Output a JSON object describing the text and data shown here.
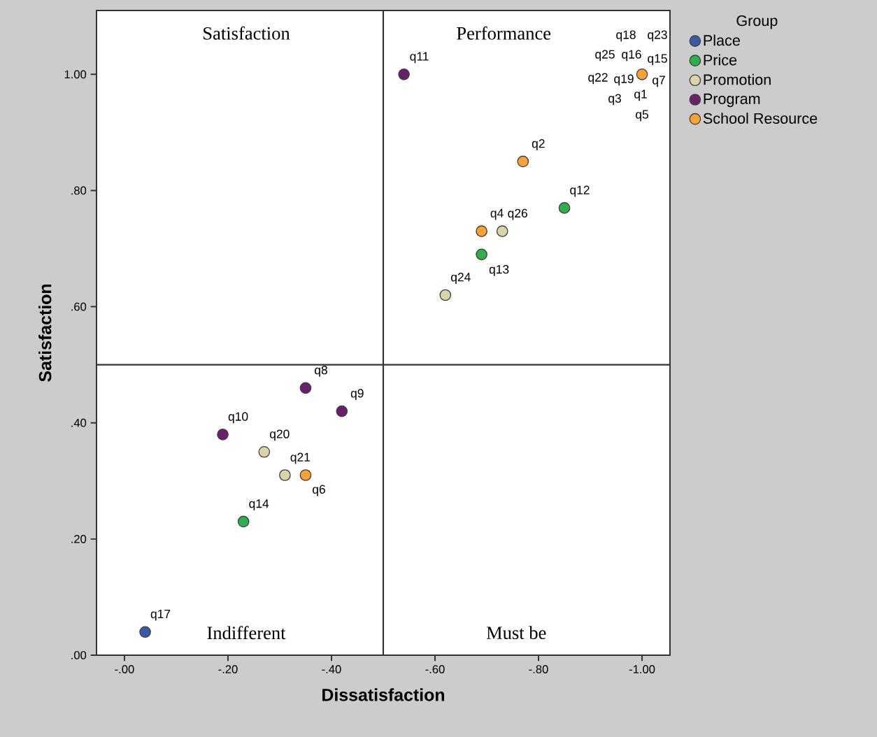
{
  "chart_data": {
    "type": "scatter",
    "xlabel": "Dissatisfaction",
    "ylabel": "Satisfaction",
    "legend_title": "Group",
    "annotations": [
      "Satisfaction",
      "Performance",
      "Indifferent",
      "Must be",
      {
        "text": "q11",
        "x": -0.54,
        "y": 1.0
      },
      {
        "text": "q2",
        "x": -0.77,
        "y": 0.85
      },
      {
        "text": "q12",
        "x": -0.85,
        "y": 0.77
      },
      {
        "text": "q4",
        "x": -0.69,
        "y": 0.73
      },
      {
        "text": "q26",
        "x": -0.73,
        "y": 0.73
      },
      {
        "text": "q13",
        "x": -0.69,
        "y": 0.69
      },
      {
        "text": "q24",
        "x": -0.62,
        "y": 0.62
      },
      {
        "text": "q8",
        "x": -0.35,
        "y": 0.46
      },
      {
        "text": "q9",
        "x": -0.42,
        "y": 0.42
      },
      {
        "text": "q10",
        "x": -0.19,
        "y": 0.38
      },
      {
        "text": "q20",
        "x": -0.27,
        "y": 0.35
      },
      {
        "text": "q21",
        "x": -0.31,
        "y": 0.31
      },
      {
        "text": "q6",
        "x": -0.35,
        "y": 0.31
      },
      {
        "text": "q14",
        "x": -0.23,
        "y": 0.23
      },
      {
        "text": "q17",
        "x": -0.04,
        "y": 0.04
      },
      {
        "text": "q18",
        "x": -1.0,
        "y": 1.0
      },
      {
        "text": "q23",
        "x": -1.0,
        "y": 1.0
      },
      {
        "text": "q25",
        "x": -1.0,
        "y": 1.0
      },
      {
        "text": "q16",
        "x": -1.0,
        "y": 1.0
      },
      {
        "text": "q15",
        "x": -1.0,
        "y": 1.0
      },
      {
        "text": "q22",
        "x": -1.0,
        "y": 1.0
      },
      {
        "text": "q19",
        "x": -1.0,
        "y": 1.0
      },
      {
        "text": "q7",
        "x": -1.0,
        "y": 1.0
      },
      {
        "text": "q3",
        "x": -1.0,
        "y": 1.0
      },
      {
        "text": "q1",
        "x": -1.0,
        "y": 1.0
      },
      {
        "text": "q5",
        "x": -1.0,
        "y": 1.0
      }
    ],
    "series": [
      {
        "name": "Place",
        "color": "#3a5aa8",
        "x": [
          -0.04
        ],
        "values": [
          0.04
        ]
      },
      {
        "name": "Price",
        "color": "#2fb04c",
        "x": [
          -0.85,
          -0.69,
          -0.23
        ],
        "values": [
          0.77,
          0.69,
          0.23
        ]
      },
      {
        "name": "Promotion",
        "color": "#d8d5a8",
        "x": [
          -0.73,
          -0.62,
          -0.27,
          -0.31
        ],
        "values": [
          0.73,
          0.62,
          0.35,
          0.31
        ]
      },
      {
        "name": "Program",
        "color": "#6b1f6b",
        "x": [
          -0.54,
          -0.35,
          -0.42,
          -0.19
        ],
        "values": [
          1.0,
          0.46,
          0.42,
          0.38
        ]
      },
      {
        "name": "School Resource",
        "color": "#f7a234",
        "x": [
          -1.0,
          -0.77,
          -0.69,
          -0.35
        ],
        "values": [
          1.0,
          0.85,
          0.73,
          0.31
        ]
      }
    ],
    "xlim": [
      0.054,
      -1.054
    ],
    "ylim": [
      0,
      1.11
    ],
    "xticks": [
      {
        "value": 0,
        "label": "-.00"
      },
      {
        "value": -0.2,
        "label": "-.20"
      },
      {
        "value": -0.4,
        "label": "-.40"
      },
      {
        "value": -0.6,
        "label": "-.60"
      },
      {
        "value": -0.8,
        "label": "-.80"
      },
      {
        "value": -1.0,
        "label": "-1.00"
      }
    ],
    "yticks": [
      {
        "value": 0,
        "label": ".00"
      },
      {
        "value": 0.2,
        "label": ".20"
      },
      {
        "value": 0.4,
        "label": ".40"
      },
      {
        "value": 0.6,
        "label": ".60"
      },
      {
        "value": 0.8,
        "label": ".80"
      },
      {
        "value": 1.0,
        "label": "1.00"
      }
    ],
    "ref_lines": [
      {
        "axis": "x",
        "value": -0.5,
        "color": "#333333"
      },
      {
        "axis": "y",
        "value": 0.5,
        "color": "#333333"
      }
    ],
    "legend": "right"
  }
}
